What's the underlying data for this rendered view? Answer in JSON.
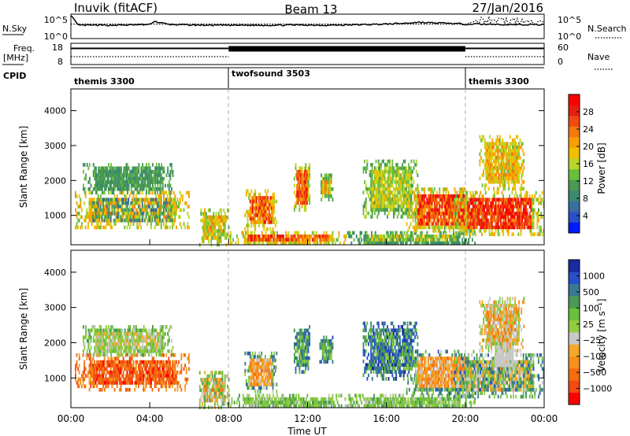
{
  "header": {
    "station": "Inuvik (fitACF)",
    "beam": "Beam 13",
    "date": "27/Jan/2016"
  },
  "left_labels": {
    "nsky": "N.Sky",
    "freq_top": "Freq.",
    "freq_unit": "[MHz]",
    "cpid": "CPID"
  },
  "right_labels": {
    "nsearch": "N.Search",
    "nave": "Nave"
  },
  "chart_data": [
    {
      "type": "line",
      "name_left": "N.Sky",
      "name_right": "N.Search",
      "yticks_left": [
        "10^5",
        "10^0"
      ],
      "yticks_right": [
        "10^5",
        "10^0"
      ],
      "x_hours": [
        0,
        0.35,
        0.5,
        1,
        2,
        3,
        4,
        4.2,
        5,
        6,
        7,
        8,
        9,
        10,
        11,
        12,
        13,
        14,
        15,
        16,
        17,
        17.6,
        18,
        19,
        20,
        20.5,
        21,
        22,
        23,
        24
      ],
      "nsky_level": [
        1,
        0.55,
        0.55,
        0.55,
        0.55,
        0.56,
        0.58,
        0.72,
        0.58,
        0.56,
        0.55,
        0.55,
        0.55,
        0.55,
        0.56,
        0.56,
        0.55,
        0.56,
        0.58,
        0.6,
        0.64,
        0.68,
        0.66,
        0.64,
        0.6,
        0.6,
        0.6,
        0.58,
        0.58,
        0.58
      ],
      "nsearch_level": [
        0.6,
        0.6,
        0.6,
        0.6,
        0.6,
        0.6,
        0.6,
        0.6,
        0.6,
        0.6,
        0.6,
        0.6,
        0.6,
        0.6,
        0.6,
        0.6,
        0.6,
        0.6,
        0.6,
        0.6,
        0.6,
        0.6,
        0.6,
        0.6,
        0.6,
        0.72,
        0.8,
        0.75,
        0.7,
        0.65
      ]
    },
    {
      "type": "line",
      "name_left": "Freq. [MHz]",
      "name_right": "Nave",
      "yticks_left": [
        "18",
        "8"
      ],
      "yticks_right": [
        "60",
        "0"
      ],
      "segments": [
        {
          "x_start": 0,
          "x_end": 8,
          "freq_level": 0.78,
          "nave_level": 0.6
        },
        {
          "x_start": 8,
          "x_end": 20,
          "freq_level": 0.78,
          "nave_level": 0.9
        },
        {
          "x_start": 20,
          "x_end": 24,
          "freq_level": 0.78,
          "nave_level": 0.6
        }
      ]
    },
    {
      "type": "table",
      "name": "CPID",
      "modes": [
        {
          "label": "themis 3300",
          "x_start": 0,
          "x_end": 8
        },
        {
          "label": "twofsound 3503",
          "x_start": 8,
          "x_end": 20
        },
        {
          "label": "themis 3300",
          "x_start": 20,
          "x_end": 24
        }
      ]
    },
    {
      "type": "heatmap",
      "quantity": "power",
      "ylabel": "Slant Range [km]",
      "ylim": [
        180,
        4600
      ],
      "yticks": [
        1000,
        2000,
        3000,
        4000
      ],
      "colorbar": {
        "label": "Power [dB]",
        "range": [
          0,
          32
        ],
        "ticks": [
          4,
          8,
          12,
          16,
          20,
          24,
          28
        ],
        "colors": [
          "#0019ff",
          "#2850c8",
          "#3a6ea0",
          "#3a8a72",
          "#4a9a55",
          "#6cbf3c",
          "#b8d62a",
          "#f0c000",
          "#f8a000",
          "#f27a10",
          "#ef4a10",
          "#e81e10",
          "#ff0000"
        ]
      },
      "echo_regions": [
        {
          "x": [
            0.2,
            6.0
          ],
          "range": [
            700,
            1700
          ],
          "center": [
            4,
            24
          ],
          "edge": [
            13,
            22
          ]
        },
        {
          "x": [
            0.6,
            5.2
          ],
          "range": [
            1700,
            2500
          ],
          "center": [
            8,
            13
          ],
          "edge": [
            8,
            14
          ]
        },
        {
          "x": [
            6.5,
            8.0
          ],
          "range": [
            200,
            1200
          ],
          "center": [
            12,
            24
          ],
          "edge": [
            12,
            20
          ]
        },
        {
          "x": [
            8.0,
            14.0
          ],
          "range": [
            200,
            550
          ],
          "center": [
            20,
            30
          ],
          "edge": [
            13,
            22
          ]
        },
        {
          "x": [
            8.8,
            10.4
          ],
          "range": [
            650,
            1750
          ],
          "center": [
            18,
            30
          ],
          "edge": [
            14,
            22
          ]
        },
        {
          "x": [
            11.3,
            12.1
          ],
          "range": [
            1200,
            2500
          ],
          "center": [
            20,
            30
          ],
          "edge": [
            12,
            20
          ]
        },
        {
          "x": [
            12.6,
            13.3
          ],
          "range": [
            1500,
            2200
          ],
          "center": [
            14,
            24
          ],
          "edge": [
            10,
            16
          ]
        },
        {
          "x": [
            14.8,
            17.6
          ],
          "range": [
            1000,
            2600
          ],
          "center": [
            12,
            20
          ],
          "edge": [
            10,
            16
          ]
        },
        {
          "x": [
            14.0,
            20.5
          ],
          "range": [
            200,
            550
          ],
          "center": [
            10,
            20
          ],
          "edge": [
            8,
            14
          ]
        },
        {
          "x": [
            17.0,
            20.5
          ],
          "range": [
            550,
            1800
          ],
          "center": [
            20,
            32
          ],
          "edge": [
            12,
            22
          ]
        },
        {
          "x": [
            19.4,
            24.0
          ],
          "range": [
            500,
            1700
          ],
          "center": [
            22,
            32
          ],
          "edge": [
            12,
            22
          ]
        },
        {
          "x": [
            20.7,
            23.0
          ],
          "range": [
            1800,
            3300
          ],
          "center": [
            14,
            24
          ],
          "edge": [
            14,
            22
          ]
        }
      ]
    },
    {
      "type": "heatmap",
      "quantity": "velocity",
      "ylabel": "Slant Range [km]",
      "ylim": [
        180,
        4600
      ],
      "yticks": [
        1000,
        2000,
        3000,
        4000
      ],
      "xticks": [
        "00:00",
        "04:00",
        "08:00",
        "12:00",
        "16:00",
        "20:00",
        "00:00"
      ],
      "xlabel": "Time UT",
      "colorbar": {
        "label": "Velocity [m s⁻¹]",
        "ticks": [
          "1000",
          "500",
          "100",
          "25",
          "−25",
          "−100",
          "−500",
          "−1000"
        ],
        "colors": [
          "#ff0000",
          "#f24a10",
          "#f26e10",
          "#f59020",
          "#f5a828",
          "#c8c8c8",
          "#90cc40",
          "#6cbf3c",
          "#4a9a55",
          "#3a7a90",
          "#2850c8",
          "#1a2aa0"
        ]
      },
      "echo_regions": [
        {
          "x": [
            0.2,
            6.0
          ],
          "range": [
            700,
            1700
          ],
          "center": [
            0,
            3
          ],
          "edge": [
            1,
            4
          ]
        },
        {
          "x": [
            0.6,
            5.2
          ],
          "range": [
            1700,
            2500
          ],
          "center": [
            4,
            7
          ],
          "edge": [
            5,
            8
          ]
        },
        {
          "x": [
            6.5,
            8.0
          ],
          "range": [
            200,
            1200
          ],
          "center": [
            2,
            8
          ],
          "edge": [
            4,
            8
          ]
        },
        {
          "x": [
            8.0,
            14.0
          ],
          "range": [
            200,
            550
          ],
          "center": [
            5,
            8
          ],
          "edge": [
            5,
            8
          ]
        },
        {
          "x": [
            8.8,
            10.4
          ],
          "range": [
            650,
            1750
          ],
          "center": [
            2,
            5
          ],
          "edge": [
            5,
            10
          ]
        },
        {
          "x": [
            11.3,
            12.1
          ],
          "range": [
            1200,
            2500
          ],
          "center": [
            6,
            10
          ],
          "edge": [
            7,
            10
          ]
        },
        {
          "x": [
            12.6,
            13.3
          ],
          "range": [
            1500,
            2200
          ],
          "center": [
            6,
            9
          ],
          "edge": [
            7,
            10
          ]
        },
        {
          "x": [
            14.8,
            17.6
          ],
          "range": [
            1000,
            2600
          ],
          "center": [
            6,
            11
          ],
          "edge": [
            7,
            11
          ]
        },
        {
          "x": [
            14.0,
            20.5
          ],
          "range": [
            200,
            550
          ],
          "center": [
            5,
            8
          ],
          "edge": [
            5,
            8
          ]
        },
        {
          "x": [
            17.0,
            20.5
          ],
          "range": [
            550,
            1800
          ],
          "center": [
            2,
            5
          ],
          "edge": [
            5,
            10
          ]
        },
        {
          "x": [
            19.4,
            24.0
          ],
          "range": [
            500,
            1700
          ],
          "center": [
            3,
            10
          ],
          "edge": [
            5,
            10
          ]
        },
        {
          "x": [
            21.3,
            22.6
          ],
          "range": [
            1200,
            2200
          ],
          "center": [
            5,
            5
          ],
          "edge": [
            5,
            6
          ]
        },
        {
          "x": [
            20.7,
            23.0
          ],
          "range": [
            1800,
            3300
          ],
          "center": [
            2,
            6
          ],
          "edge": [
            3,
            7
          ]
        }
      ]
    }
  ]
}
